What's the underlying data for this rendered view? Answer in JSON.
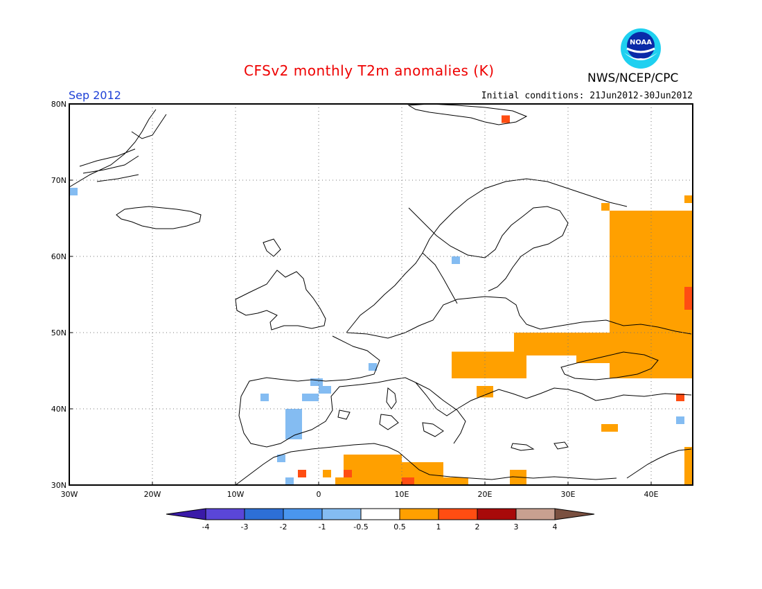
{
  "header": {
    "title": "CFSv2 monthly T2m anomalies (K)",
    "org": "NWS/NCEP/CPC",
    "month": "Sep 2012",
    "initial_conditions": "Initial conditions: 21Jun2012-30Jun2012",
    "logo_text": "NOAA"
  },
  "map": {
    "lon_range": [
      -30,
      45
    ],
    "lat_range": [
      30,
      80
    ],
    "lon_ticks": [
      {
        "value": -30,
        "label": "30W"
      },
      {
        "value": -20,
        "label": "20W"
      },
      {
        "value": -10,
        "label": "10W"
      },
      {
        "value": 0,
        "label": "0"
      },
      {
        "value": 10,
        "label": "10E"
      },
      {
        "value": 20,
        "label": "20E"
      },
      {
        "value": 30,
        "label": "30E"
      },
      {
        "value": 40,
        "label": "40E"
      }
    ],
    "lat_ticks": [
      {
        "value": 30,
        "label": "30N"
      },
      {
        "value": 40,
        "label": "40N"
      },
      {
        "value": 50,
        "label": "50N"
      },
      {
        "value": 60,
        "label": "60N"
      },
      {
        "value": 70,
        "label": "70N"
      },
      {
        "value": 80,
        "label": "80N"
      }
    ],
    "grid": "dotted"
  },
  "legend": {
    "levels": [
      "-4",
      "-3",
      "-2",
      "-1",
      "-0.5",
      "0.5",
      "1",
      "2",
      "3",
      "4"
    ],
    "colors": [
      "#3a1aa8",
      "#5a46d8",
      "#2d6fd6",
      "#4a96ee",
      "#84bcf2",
      "#ffffff",
      "#ffa000",
      "#ff4d12",
      "#a80a0a",
      "#c8a090",
      "#7a5040"
    ]
  },
  "anomaly_regions": [
    {
      "category": "warm-0.5-1",
      "color": "#ffa000",
      "boxes": [
        [
          35,
          44,
          45,
          66
        ],
        [
          31,
          46,
          45,
          50
        ],
        [
          23.5,
          47,
          33,
          50
        ],
        [
          16,
          44,
          25,
          47.5
        ],
        [
          19,
          41.5,
          21,
          43
        ],
        [
          34,
          37,
          36,
          38
        ],
        [
          44,
          30,
          45,
          35
        ],
        [
          23,
          30,
          25,
          32
        ],
        [
          3,
          30,
          10,
          34
        ],
        [
          10,
          30,
          15,
          33
        ],
        [
          14,
          30,
          18,
          31
        ],
        [
          2,
          30,
          4,
          31
        ],
        [
          0.5,
          31,
          1.5,
          32
        ],
        [
          34,
          66,
          35,
          67
        ],
        [
          36,
          64,
          45,
          66
        ],
        [
          44,
          67,
          45,
          68
        ]
      ]
    },
    {
      "category": "warm-1-2",
      "color": "#ff4d12",
      "boxes": [
        [
          44,
          53,
          45,
          56
        ],
        [
          43,
          41,
          44,
          42
        ],
        [
          22,
          77.5,
          23,
          78.5
        ],
        [
          3,
          31,
          4,
          32
        ],
        [
          -2.5,
          31,
          -1.5,
          32
        ],
        [
          10,
          30,
          11.5,
          31
        ]
      ]
    },
    {
      "category": "cold-0.5-1",
      "color": "#84bcf2",
      "boxes": [
        [
          -4,
          36,
          -2,
          40
        ],
        [
          -2,
          41,
          0,
          42
        ],
        [
          -1,
          43,
          0.5,
          44
        ],
        [
          0,
          42,
          1.5,
          43
        ],
        [
          -7,
          41,
          -6,
          42
        ],
        [
          6,
          45,
          7,
          46
        ],
        [
          16,
          59,
          17,
          60
        ],
        [
          -30,
          68,
          -29,
          69
        ],
        [
          43,
          38,
          44,
          39
        ],
        [
          -5,
          33,
          -4,
          34
        ],
        [
          -4,
          30,
          -3,
          31
        ]
      ]
    }
  ]
}
